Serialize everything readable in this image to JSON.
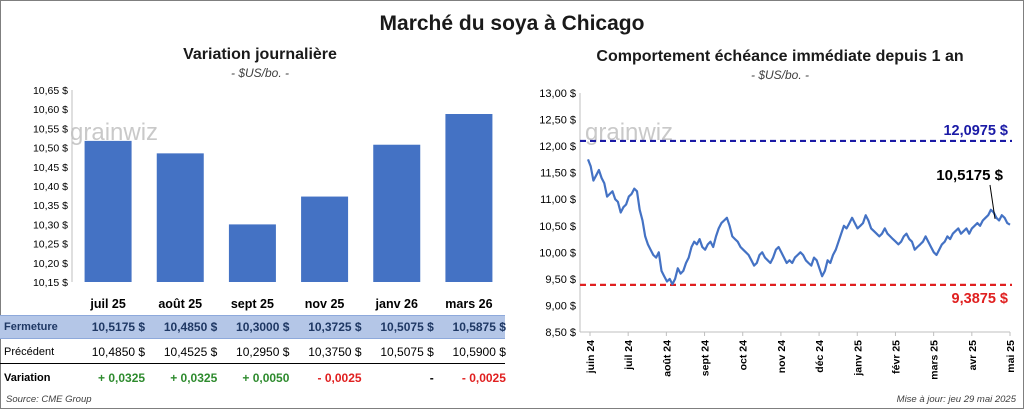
{
  "title": "Marché du soya à Chicago",
  "left": {
    "subtitle": "Variation journalière",
    "unit": "- $US/bo. -",
    "watermark": "grainwiz",
    "chart_data": {
      "type": "bar",
      "categories": [
        "juil 25",
        "août 25",
        "sept 25",
        "nov 25",
        "janv 26",
        "mars 26"
      ],
      "values": [
        10.5175,
        10.485,
        10.3,
        10.3725,
        10.5075,
        10.5875
      ],
      "ylim": [
        10.15,
        10.65
      ],
      "yticks": [
        "10,15 $",
        "10,20 $",
        "10,25 $",
        "10,30 $",
        "10,35 $",
        "10,40 $",
        "10,45 $",
        "10,50 $",
        "10,55 $",
        "10,60 $",
        "10,65 $"
      ],
      "bar_color": "#4472c4"
    },
    "table": {
      "rows": [
        {
          "label": "Fermeture",
          "values": [
            "10,5175  $",
            "10,4850  $",
            "10,3000  $",
            "10,3725  $",
            "10,5075  $",
            "10,5875  $"
          ]
        },
        {
          "label": "Précédent",
          "values": [
            "10,4850  $",
            "10,4525  $",
            "10,2950  $",
            "10,3750  $",
            "10,5075  $",
            "10,5900  $"
          ]
        },
        {
          "label": "Variation",
          "values": [
            "+ 0,0325",
            "+ 0,0325",
            "+ 0,0050",
            "- 0,0025",
            "-",
            "- 0,0025"
          ],
          "signs": [
            "pos",
            "pos",
            "pos",
            "neg",
            "neu",
            "neg"
          ]
        }
      ]
    }
  },
  "right": {
    "subtitle": "Comportement  échéance immédiate depuis 1 an",
    "unit": "- $US/bo. -",
    "watermark": "grainwiz",
    "chart_data": {
      "type": "line",
      "ylim": [
        8.5,
        13.0
      ],
      "yticks": [
        "8,50 $",
        "9,00 $",
        "9,50 $",
        "10,00 $",
        "10,50 $",
        "11,00 $",
        "11,50 $",
        "12,00 $",
        "12,50 $",
        "13,00 $"
      ],
      "xticks": [
        "juin 24",
        "juil 24",
        "août 24",
        "sept 24",
        "oct 24",
        "nov 24",
        "déc 24",
        "janv 25",
        "févr 25",
        "mars 25",
        "avr 25",
        "mai 25"
      ],
      "high": {
        "value": 12.0975,
        "label": "12,0975 $",
        "color": "#1a1aa6"
      },
      "low": {
        "value": 9.3875,
        "label": "9,3875 $",
        "color": "#e02020"
      },
      "last": {
        "value": 10.5175,
        "label": "10,5175 $"
      },
      "series": [
        {
          "color": "#4472c4",
          "values": [
            11.75,
            11.62,
            11.35,
            11.45,
            11.55,
            11.4,
            11.3,
            11.05,
            11.1,
            11.15,
            11.0,
            10.95,
            10.75,
            10.85,
            10.9,
            11.05,
            11.1,
            11.2,
            11.15,
            10.8,
            10.6,
            10.3,
            10.15,
            10.05,
            9.95,
            9.9,
            10.0,
            9.65,
            9.55,
            9.45,
            9.5,
            9.4,
            9.5,
            9.7,
            9.6,
            9.65,
            9.8,
            9.9,
            10.1,
            10.2,
            10.15,
            10.25,
            10.1,
            10.05,
            10.15,
            10.2,
            10.1,
            10.3,
            10.45,
            10.55,
            10.6,
            10.65,
            10.5,
            10.3,
            10.25,
            10.2,
            10.1,
            10.05,
            10.0,
            9.95,
            9.85,
            9.75,
            9.8,
            9.95,
            10.0,
            9.9,
            9.85,
            9.8,
            9.9,
            10.05,
            10.1,
            10.0,
            9.9,
            9.8,
            9.85,
            9.8,
            9.9,
            9.95,
            10.0,
            9.95,
            9.85,
            9.8,
            9.75,
            9.9,
            9.85,
            9.7,
            9.55,
            9.65,
            9.85,
            9.8,
            9.95,
            10.05,
            10.2,
            10.35,
            10.5,
            10.45,
            10.55,
            10.65,
            10.55,
            10.45,
            10.5,
            10.55,
            10.7,
            10.6,
            10.45,
            10.4,
            10.35,
            10.3,
            10.35,
            10.45,
            10.35,
            10.3,
            10.25,
            10.2,
            10.15,
            10.2,
            10.3,
            10.35,
            10.25,
            10.2,
            10.05,
            10.1,
            10.15,
            10.2,
            10.3,
            10.2,
            10.1,
            10.0,
            9.95,
            10.05,
            10.15,
            10.2,
            10.3,
            10.25,
            10.35,
            10.4,
            10.45,
            10.35,
            10.4,
            10.45,
            10.35,
            10.45,
            10.5,
            10.55,
            10.5,
            10.6,
            10.65,
            10.7,
            10.8,
            10.75,
            10.65,
            10.6,
            10.7,
            10.65,
            10.55,
            10.52
          ]
        }
      ]
    }
  },
  "footer": {
    "source": "Source: CME Group",
    "updated": "Mise à jour: jeu 29 mai 2025"
  }
}
